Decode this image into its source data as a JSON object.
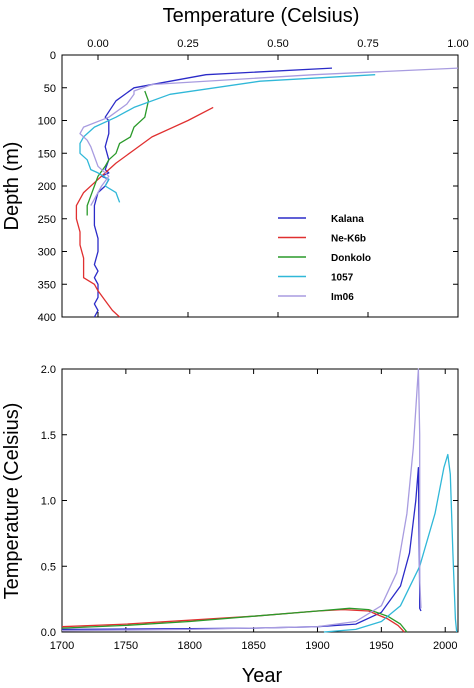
{
  "chart_data": [
    {
      "type": "line",
      "title": "Temperature (Celsius)",
      "xlabel": "Temperature (Celsius)",
      "ylabel": "Depth (m)",
      "xlim": [
        -0.1,
        1.0
      ],
      "ylim": [
        0,
        400
      ],
      "y_inverted": true,
      "x_axis_position": "top",
      "x_ticks": [
        "0.00",
        "0.25",
        "0.50",
        "0.75",
        "1.00"
      ],
      "x_tick_values": [
        0,
        0.25,
        0.5,
        0.75,
        1.0
      ],
      "y_ticks": [
        "0",
        "50",
        "100",
        "150",
        "200",
        "250",
        "300",
        "350",
        "400"
      ],
      "y_tick_values": [
        0,
        50,
        100,
        150,
        200,
        250,
        300,
        350,
        400
      ],
      "legend_position": "lower-right",
      "grid": false,
      "series": [
        {
          "name": "Kalana",
          "color": "#2b2bc8",
          "points": [
            [
              0.65,
              20
            ],
            [
              0.3,
              30
            ],
            [
              0.1,
              50
            ],
            [
              0.05,
              70
            ],
            [
              0.02,
              95
            ],
            [
              0.03,
              100
            ],
            [
              0.03,
              120
            ],
            [
              0.02,
              140
            ],
            [
              0.03,
              160
            ],
            [
              0.02,
              175
            ],
            [
              0.03,
              180
            ],
            [
              0.01,
              185
            ],
            [
              0.03,
              190
            ],
            [
              0.02,
              200
            ],
            [
              0.0,
              210
            ],
            [
              -0.01,
              230
            ],
            [
              -0.01,
              260
            ],
            [
              0.0,
              280
            ],
            [
              0.0,
              300
            ],
            [
              -0.01,
              320
            ],
            [
              0.0,
              330
            ],
            [
              -0.01,
              340
            ],
            [
              0.0,
              350
            ],
            [
              0.0,
              370
            ],
            [
              -0.01,
              380
            ],
            [
              0.0,
              390
            ],
            [
              -0.01,
              400
            ]
          ]
        },
        {
          "name": "Ne-K6b",
          "color": "#e03030",
          "points": [
            [
              0.32,
              80
            ],
            [
              0.25,
              100
            ],
            [
              0.15,
              125
            ],
            [
              0.1,
              145
            ],
            [
              0.05,
              165
            ],
            [
              0.02,
              180
            ],
            [
              -0.01,
              195
            ],
            [
              -0.04,
              210
            ],
            [
              -0.06,
              230
            ],
            [
              -0.06,
              250
            ],
            [
              -0.05,
              270
            ],
            [
              -0.05,
              290
            ],
            [
              -0.04,
              310
            ],
            [
              -0.04,
              330
            ],
            [
              -0.04,
              340
            ],
            [
              -0.01,
              350
            ],
            [
              0.0,
              360
            ],
            [
              0.02,
              375
            ],
            [
              0.04,
              390
            ],
            [
              0.06,
              400
            ]
          ]
        },
        {
          "name": "Donkolo",
          "color": "#2a9a2a",
          "points": [
            [
              0.13,
              55
            ],
            [
              0.14,
              70
            ],
            [
              0.13,
              95
            ],
            [
              0.1,
              110
            ],
            [
              0.09,
              125
            ],
            [
              0.06,
              135
            ],
            [
              0.05,
              150
            ],
            [
              0.03,
              160
            ],
            [
              0.02,
              170
            ],
            [
              0.0,
              185
            ],
            [
              -0.01,
              200
            ],
            [
              -0.02,
              215
            ],
            [
              -0.03,
              230
            ],
            [
              -0.03,
              245
            ]
          ]
        },
        {
          "name": "1057",
          "color": "#30b8d8",
          "points": [
            [
              0.77,
              30
            ],
            [
              0.45,
              40
            ],
            [
              0.2,
              60
            ],
            [
              0.1,
              80
            ],
            [
              0.05,
              95
            ],
            [
              -0.01,
              110
            ],
            [
              -0.04,
              125
            ],
            [
              -0.05,
              135
            ],
            [
              -0.05,
              150
            ],
            [
              -0.03,
              160
            ],
            [
              -0.02,
              175
            ],
            [
              0.0,
              180
            ],
            [
              0.03,
              190
            ],
            [
              0.02,
              200
            ],
            [
              0.05,
              210
            ],
            [
              0.06,
              225
            ]
          ]
        },
        {
          "name": "Im06",
          "color": "#a89ce0",
          "points": [
            [
              1.0,
              20
            ],
            [
              0.6,
              30
            ],
            [
              0.15,
              45
            ],
            [
              0.1,
              55
            ],
            [
              0.1,
              60
            ],
            [
              0.08,
              75
            ],
            [
              0.03,
              95
            ],
            [
              -0.04,
              110
            ],
            [
              -0.05,
              120
            ],
            [
              -0.03,
              130
            ],
            [
              -0.02,
              140
            ],
            [
              -0.01,
              155
            ],
            [
              0.0,
              170
            ],
            [
              0.03,
              185
            ],
            [
              0.01,
              200
            ],
            [
              -0.01,
              220
            ],
            [
              -0.02,
              230
            ]
          ]
        }
      ]
    },
    {
      "type": "line",
      "xlabel": "Year",
      "ylabel": "Temperature (Celsius)",
      "xlim": [
        1700,
        2010
      ],
      "ylim": [
        0,
        2.0
      ],
      "x_ticks": [
        "1700",
        "1750",
        "1800",
        "1850",
        "1900",
        "1950",
        "2000"
      ],
      "x_tick_values": [
        1700,
        1750,
        1800,
        1850,
        1900,
        1950,
        2000
      ],
      "y_ticks": [
        "0.0",
        "0.5",
        "1.0",
        "1.5",
        "2.0"
      ],
      "y_tick_values": [
        0,
        0.5,
        1.0,
        1.5,
        2.0
      ],
      "grid": false,
      "series": [
        {
          "name": "Kalana",
          "color": "#2b2bc8",
          "points": [
            [
              1700,
              0.02
            ],
            [
              1800,
              0.025
            ],
            [
              1850,
              0.03
            ],
            [
              1900,
              0.04
            ],
            [
              1930,
              0.06
            ],
            [
              1950,
              0.15
            ],
            [
              1965,
              0.35
            ],
            [
              1972,
              0.6
            ],
            [
              1977,
              1.0
            ],
            [
              1979,
              1.25
            ],
            [
              1980,
              0.3
            ],
            [
              1980,
              0.18
            ],
            [
              1981,
              0.16
            ]
          ]
        },
        {
          "name": "Ne-K6b",
          "color": "#e03030",
          "points": [
            [
              1700,
              0.04
            ],
            [
              1750,
              0.06
            ],
            [
              1800,
              0.09
            ],
            [
              1850,
              0.12
            ],
            [
              1900,
              0.16
            ],
            [
              1920,
              0.17
            ],
            [
              1940,
              0.16
            ],
            [
              1955,
              0.1
            ],
            [
              1963,
              0.05
            ],
            [
              1968,
              0.0
            ]
          ]
        },
        {
          "name": "Donkolo",
          "color": "#2a9a2a",
          "points": [
            [
              1700,
              0.03
            ],
            [
              1750,
              0.05
            ],
            [
              1800,
              0.08
            ],
            [
              1850,
              0.12
            ],
            [
              1900,
              0.16
            ],
            [
              1925,
              0.18
            ],
            [
              1940,
              0.17
            ],
            [
              1955,
              0.12
            ],
            [
              1965,
              0.06
            ],
            [
              1970,
              0.0
            ]
          ]
        },
        {
          "name": "1057",
          "color": "#30b8d8",
          "points": [
            [
              1905,
              0.0
            ],
            [
              1930,
              0.02
            ],
            [
              1950,
              0.08
            ],
            [
              1965,
              0.2
            ],
            [
              1980,
              0.5
            ],
            [
              1992,
              0.9
            ],
            [
              1999,
              1.25
            ],
            [
              2002,
              1.35
            ],
            [
              2004,
              1.2
            ],
            [
              2006,
              0.6
            ],
            [
              2008,
              0.1
            ],
            [
              2009,
              0.0
            ]
          ]
        },
        {
          "name": "Im06",
          "color": "#a89ce0",
          "points": [
            [
              1700,
              0.01
            ],
            [
              1800,
              0.02
            ],
            [
              1900,
              0.04
            ],
            [
              1930,
              0.08
            ],
            [
              1950,
              0.2
            ],
            [
              1962,
              0.45
            ],
            [
              1970,
              0.9
            ],
            [
              1975,
              1.4
            ],
            [
              1978,
              1.85
            ],
            [
              1979,
              2.0
            ],
            [
              1980,
              1.5
            ],
            [
              1980,
              0.4
            ],
            [
              1981,
              0.18
            ]
          ]
        }
      ]
    }
  ]
}
